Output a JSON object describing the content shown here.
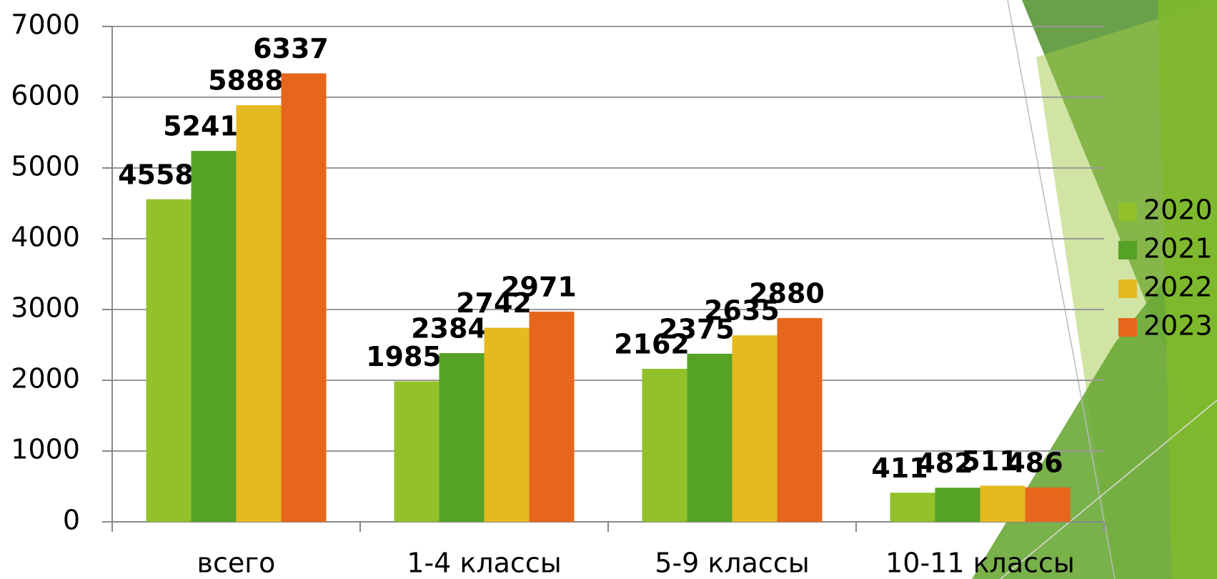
{
  "chart_data": {
    "type": "bar",
    "categories": [
      "всего",
      "1-4 классы",
      "5-9 классы",
      "10-11 классы"
    ],
    "series": [
      {
        "name": "2020",
        "color": "#92c12a",
        "values": [
          4558,
          1985,
          2162,
          411
        ]
      },
      {
        "name": "2021",
        "color": "#56a226",
        "values": [
          5241,
          2384,
          2375,
          482
        ]
      },
      {
        "name": "2022",
        "color": "#e6b921",
        "values": [
          5888,
          2742,
          2635,
          511
        ]
      },
      {
        "name": "2023",
        "color": "#e8661b",
        "values": [
          6337,
          2971,
          2880,
          486
        ]
      }
    ],
    "ylim": [
      0,
      7000
    ],
    "yticks": [
      0,
      1000,
      2000,
      3000,
      4000,
      5000,
      6000,
      7000
    ],
    "grid": true,
    "legend": "right"
  }
}
